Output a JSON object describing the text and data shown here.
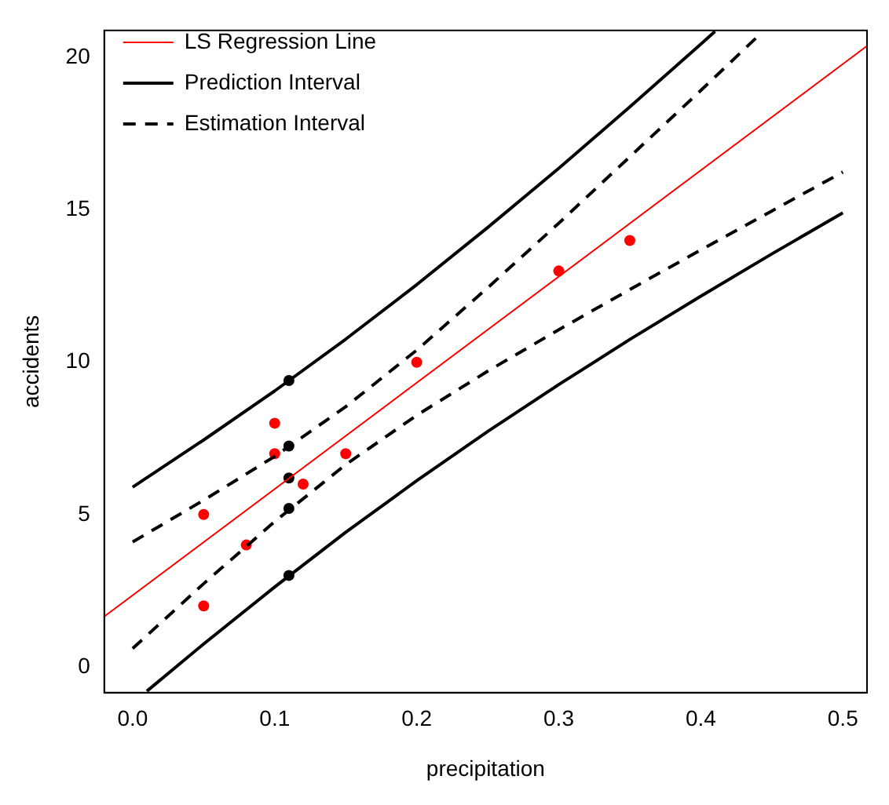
{
  "chart_data": {
    "type": "scatter",
    "xlabel": "precipitation",
    "ylabel": "accidents",
    "xlim": [
      -0.02,
      0.517
    ],
    "ylim": [
      -0.85,
      20.9
    ],
    "xticks": [
      {
        "value": 0,
        "label": "0.0"
      },
      0.1,
      0.2,
      0.3,
      0.4,
      0.5
    ],
    "yticks": [
      0,
      5,
      10,
      15,
      20
    ],
    "grid": false,
    "legend": "top left",
    "marker": "circle",
    "series": [
      {
        "name": "LS Regression Line",
        "type": "line",
        "marker": "none",
        "line_style": "solid",
        "color": "#ff0000",
        "x": [
          -0.02,
          0.517
        ],
        "values": [
          1.65,
          20.39
        ]
      },
      {
        "name": "Prediction Interval",
        "type": "line",
        "marker": "none",
        "line_style": "solid",
        "color": "#000000",
        "x": [
          0,
          0.05,
          0.1,
          0.15,
          0.2,
          0.25,
          0.3,
          0.35,
          0.4,
          0.41
        ],
        "values": [
          5.9,
          7.45,
          9.06,
          10.76,
          12.55,
          14.43,
          16.37,
          18.39,
          20.45,
          20.87
        ]
      },
      {
        "type": "line",
        "marker": "none",
        "line_style": "solid",
        "color": "#000000",
        "x": [
          0.01,
          0.05,
          0.1,
          0.15,
          0.2,
          0.25,
          0.3,
          0.35,
          0.4,
          0.45,
          0.5
        ],
        "values": [
          -0.8,
          0.75,
          2.62,
          4.42,
          6.11,
          7.73,
          9.27,
          10.75,
          12.17,
          13.56,
          14.91
        ]
      },
      {
        "name": "Estimation Interval",
        "type": "line",
        "marker": "none",
        "line_style": "dashed",
        "color": "#000000",
        "x": [
          0,
          0.05,
          0.1,
          0.15,
          0.2,
          0.25,
          0.3,
          0.35,
          0.4,
          0.44
        ],
        "values": [
          4.1,
          5.47,
          6.91,
          8.54,
          10.4,
          12.45,
          14.57,
          16.75,
          18.93,
          20.7
        ]
      },
      {
        "type": "line",
        "marker": "none",
        "line_style": "dashed",
        "color": "#000000",
        "x": [
          0,
          0.05,
          0.1,
          0.15,
          0.2,
          0.25,
          0.3,
          0.35,
          0.4,
          0.45,
          0.5
        ],
        "values": [
          0.6,
          2.73,
          4.77,
          6.64,
          8.26,
          9.71,
          11.07,
          12.39,
          13.69,
          14.97,
          16.25
        ]
      },
      {
        "type": "scatter",
        "color": "#ff0000",
        "x": [
          0.05,
          0.05,
          0.08,
          0.1,
          0.1,
          0.12,
          0.15,
          0.2,
          0.3,
          0.35
        ],
        "values": [
          5,
          2,
          4,
          8,
          7,
          6,
          7,
          10,
          13,
          14
        ]
      },
      {
        "type": "scatter",
        "color": "#000000",
        "x": [
          0.11,
          0.11,
          0.11,
          0.11,
          0.11
        ],
        "values": [
          9.4,
          7.25,
          6.2,
          5.2,
          3.0
        ]
      }
    ]
  }
}
